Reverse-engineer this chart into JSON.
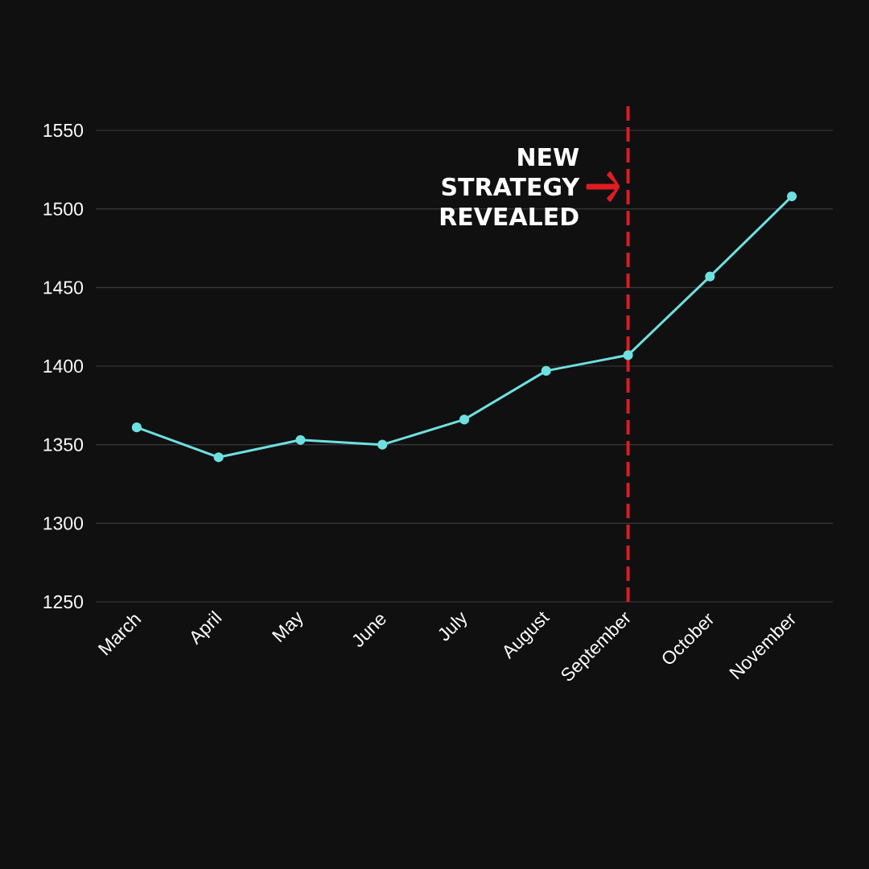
{
  "chart_data": {
    "type": "line",
    "categories": [
      "March",
      "April",
      "May",
      "June",
      "July",
      "August",
      "September",
      "October",
      "November"
    ],
    "series": [
      {
        "color": "#6fe0e0",
        "values": [
          1361,
          1342,
          1353,
          1350,
          1366,
          1397,
          1407,
          1457,
          1508
        ]
      }
    ],
    "ylim": [
      1250,
      1550
    ],
    "yticks": [
      1250,
      1300,
      1350,
      1400,
      1450,
      1500,
      1550
    ],
    "grid": "y",
    "marker": "circle",
    "line_style": "solid",
    "ref_lines": [
      {
        "axis": "x",
        "value": "September",
        "label": "NEW STRATEGY REVEALED",
        "color": "#e01b22",
        "line_style": "dashed"
      }
    ]
  }
}
